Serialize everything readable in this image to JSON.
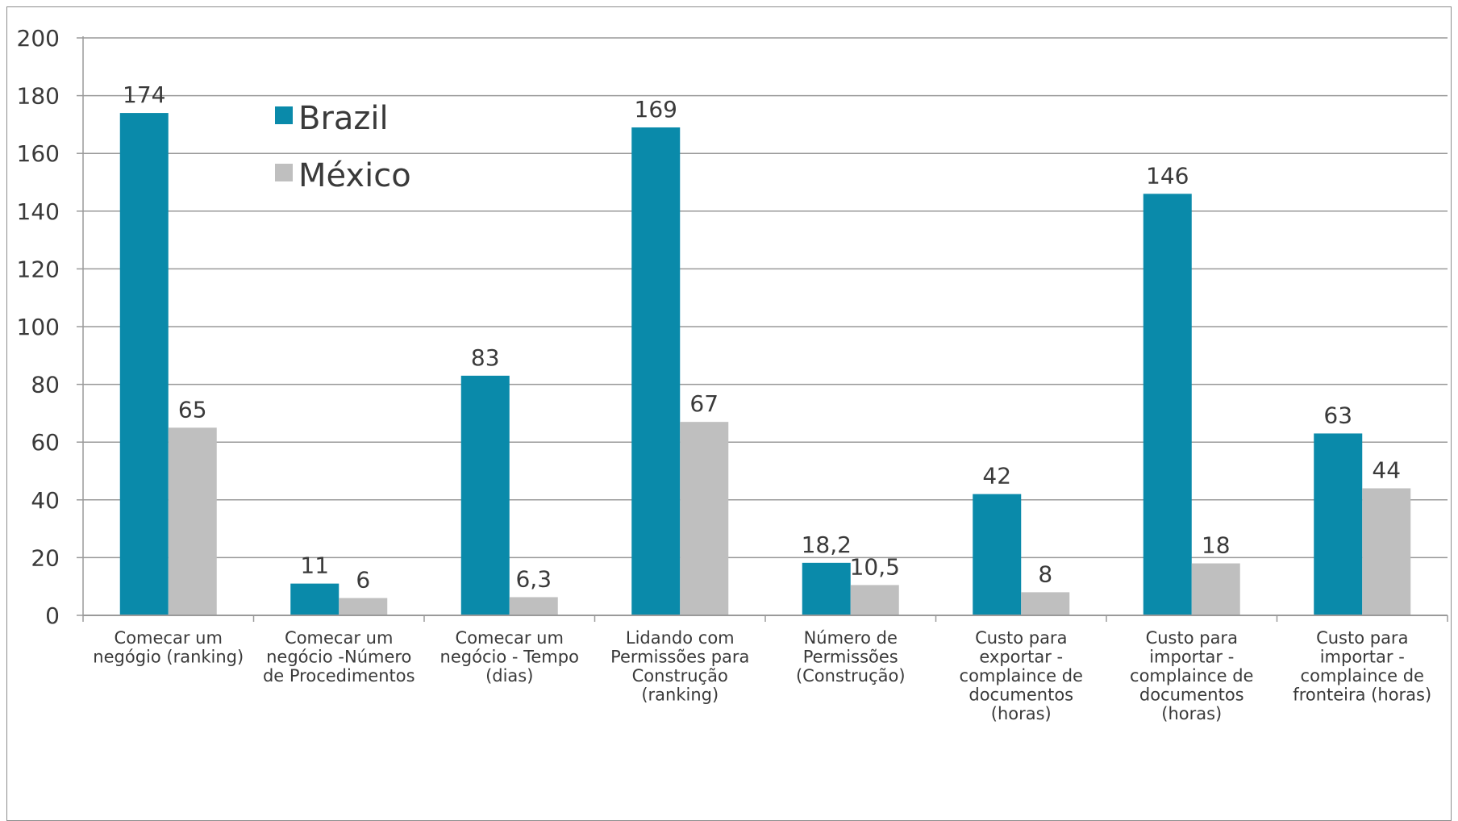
{
  "chart_data": {
    "type": "bar",
    "categories": [
      [
        "Comecar um",
        "negógio (ranking)"
      ],
      [
        "Comecar um",
        "negócio -Número",
        "de Procedimentos"
      ],
      [
        "Comecar um",
        "negócio - Tempo",
        "(dias)"
      ],
      [
        "Lidando com",
        "Permissões para",
        "Construção",
        "(ranking)"
      ],
      [
        "Número de",
        "Permissões",
        "(Construção)"
      ],
      [
        "Custo para",
        "exportar -",
        "complaince de",
        "documentos",
        "(horas)"
      ],
      [
        "Custo para",
        "importar -",
        "complaince de",
        "documentos",
        "(horas)"
      ],
      [
        "Custo para",
        "importar -",
        "complaince de",
        "fronteira (horas)"
      ]
    ],
    "series": [
      {
        "name": "Brazil",
        "color": "#0a8aaa",
        "values": [
          174,
          11,
          83,
          169,
          18.2,
          42,
          146,
          63
        ],
        "labels": [
          "174",
          "11",
          "83",
          "169",
          "18,2",
          "42",
          "146",
          "63"
        ]
      },
      {
        "name": "México",
        "color": "#bfbfbf",
        "values": [
          65,
          6,
          6.3,
          67,
          10.5,
          8,
          18,
          44
        ],
        "labels": [
          "65",
          "6",
          "6,3",
          "67",
          "10,5",
          "8",
          "18",
          "44"
        ]
      }
    ],
    "ylim": [
      0,
      200
    ],
    "yticks": [
      0,
      20,
      40,
      60,
      80,
      100,
      120,
      140,
      160,
      180,
      200
    ],
    "grid": true,
    "legend_position": "top-left",
    "title": "",
    "xlabel": "",
    "ylabel": ""
  }
}
